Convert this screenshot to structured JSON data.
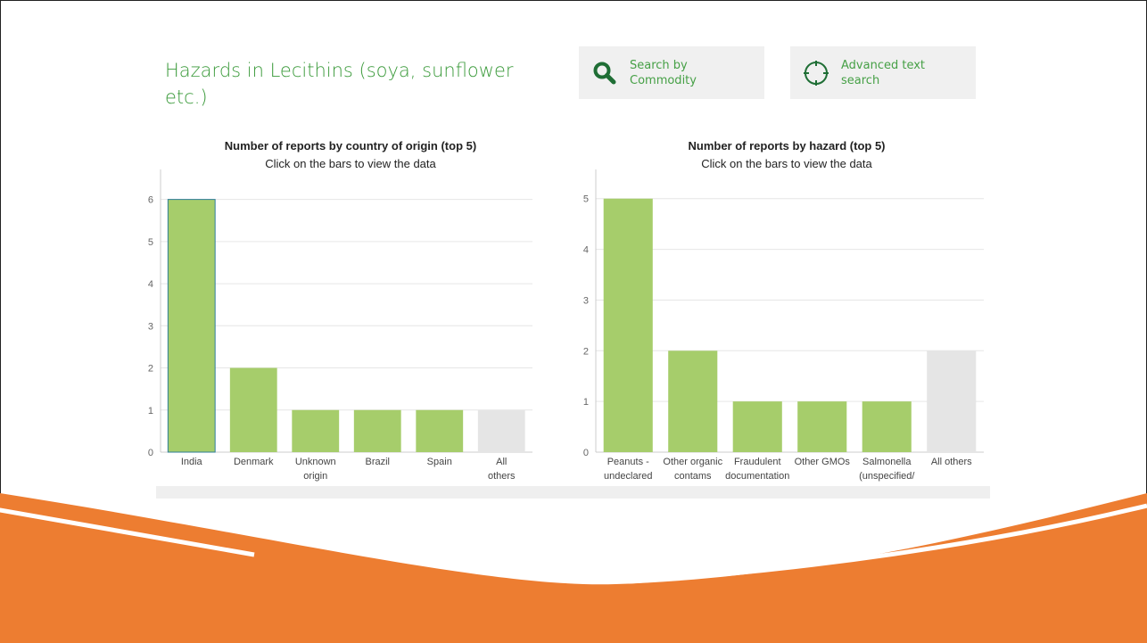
{
  "page": {
    "title": "Hazards in Lecithins (soya, sunflower etc.)",
    "buttons": {
      "commodity": {
        "label": "Search by Commodity",
        "icon": "search-icon"
      },
      "advanced": {
        "label": "Advanced text search",
        "icon": "crosshair-icon"
      }
    }
  },
  "colors": {
    "title": "#3a9a3a",
    "bar": "#a6cd6b",
    "bar_other": "#e5e5e5",
    "highlight_outline": "#2e7d9a",
    "accent_orange": "#ed7d31"
  },
  "chart_data": [
    {
      "type": "bar",
      "title": "Number of reports by country of origin (top 5)",
      "subtitle": "Click on the bars to view the data",
      "categories": [
        "India",
        "Denmark",
        "Unknown origin",
        "Brazil",
        "Spain",
        "All others"
      ],
      "values": [
        6,
        2,
        1,
        1,
        1,
        1
      ],
      "ylim": [
        0,
        6.5
      ],
      "yticks": [
        0,
        1,
        2,
        3,
        4,
        5,
        6
      ],
      "grid": true,
      "highlighted": "India"
    },
    {
      "type": "bar",
      "title": "Number of reports by hazard (top 5)",
      "subtitle": "Click on the bars to view the data",
      "categories": [
        "Peanuts - undeclared",
        "Other organic contams",
        "Fraudulent documentation",
        "Other GMOs",
        "Salmonella (unspecified/ other spp)",
        "All others"
      ],
      "values": [
        5,
        2,
        1,
        1,
        1,
        2
      ],
      "ylim": [
        0,
        5.4
      ],
      "yticks": [
        0,
        1,
        2,
        3,
        4,
        5
      ],
      "grid": true
    }
  ]
}
